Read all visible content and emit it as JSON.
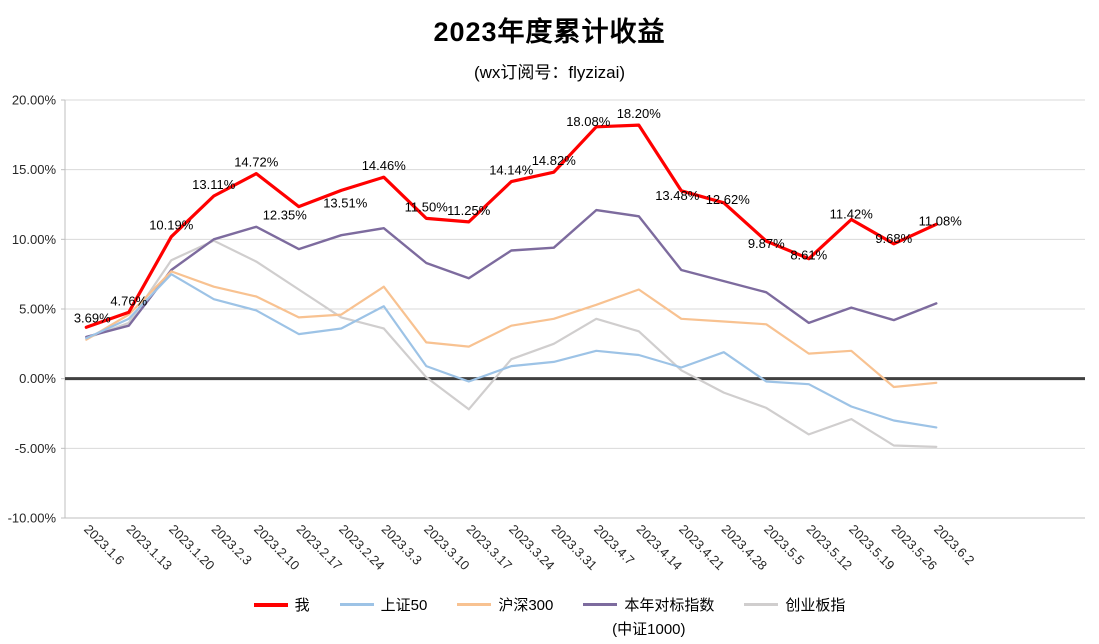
{
  "title": "2023年度累计收益",
  "subtitle": "(wx订阅号：flyzizai)",
  "chart_data": {
    "type": "line",
    "title": "2023年度累计收益",
    "subtitle": "(wx订阅号：flyzizai)",
    "x_categories": [
      "2023.1.6",
      "2023.1.13",
      "2023.1.20",
      "2023.2.3",
      "2023.2.10",
      "2023.2.17",
      "2023.2.24",
      "2023.3.3",
      "2023.3.10",
      "2023.3.17",
      "2023.3.24",
      "2023.3.31",
      "2023.4.7",
      "2023.4.14",
      "2023.4.21",
      "2023.4.28",
      "2023.5.5",
      "2023.5.12",
      "2023.5.19",
      "2023.5.26",
      "2023.6.2"
    ],
    "series": [
      {
        "name": "我",
        "color": "#FF0000",
        "line_width": 3.2,
        "values": [
          3.69,
          4.76,
          10.19,
          13.11,
          14.72,
          12.35,
          13.51,
          14.46,
          11.5,
          11.25,
          14.14,
          14.82,
          18.08,
          18.2,
          13.48,
          12.62,
          9.87,
          8.61,
          11.42,
          9.68,
          11.08
        ],
        "data_labels": [
          "3.69%",
          "4.76%",
          "10.19%",
          "13.11%",
          "14.72%",
          "12.35%",
          "13.51%",
          "14.46%",
          "11.50%",
          "11.25%",
          "14.14%",
          "14.82%",
          "18.08%",
          "18.20%",
          "13.48%",
          "12.62%",
          "9.87%",
          "8.61%",
          "11.42%",
          "9.68%",
          "11.08%"
        ]
      },
      {
        "name": "上证50",
        "color": "#9DC3E6",
        "line_width": 2.2,
        "values": [
          2.9,
          4.3,
          7.5,
          5.7,
          4.9,
          3.2,
          3.6,
          5.2,
          0.9,
          -0.2,
          0.9,
          1.2,
          2.0,
          1.7,
          0.8,
          1.9,
          -0.2,
          -0.4,
          -2.0,
          -3.0,
          -3.5
        ]
      },
      {
        "name": "沪深300",
        "color": "#F8C291",
        "line_width": 2.2,
        "values": [
          2.8,
          4.6,
          7.7,
          6.6,
          5.9,
          4.4,
          4.6,
          6.6,
          2.6,
          2.3,
          3.8,
          4.3,
          5.3,
          6.4,
          4.3,
          4.1,
          3.9,
          1.8,
          2.0,
          -0.6,
          -0.3
        ]
      },
      {
        "name": "本年对标指数",
        "name2": "(中证1000)",
        "color": "#7D6B9E",
        "line_width": 2.4,
        "values": [
          3.0,
          3.8,
          7.8,
          10.0,
          10.9,
          9.3,
          10.3,
          10.8,
          8.3,
          7.2,
          9.2,
          9.4,
          12.1,
          11.65,
          7.8,
          7.0,
          6.2,
          4.0,
          5.1,
          4.2,
          5.4
        ]
      },
      {
        "name": "创业板指",
        "color": "#D0CECE",
        "line_width": 2.2,
        "values": [
          2.9,
          4.0,
          8.5,
          9.9,
          8.4,
          6.4,
          4.4,
          3.6,
          0.1,
          -2.2,
          1.4,
          2.5,
          4.3,
          3.4,
          0.6,
          -1.0,
          -2.1,
          -4.0,
          -2.9,
          -4.8,
          -4.9
        ]
      }
    ],
    "ylim": [
      -10,
      20
    ],
    "ytick_step": 5,
    "ytick_labels": [
      "20.00%",
      "15.00%",
      "10.00%",
      "5.00%",
      "0.00%",
      "-5.00%",
      "-10.00%"
    ],
    "grid": true,
    "legend_position": "bottom",
    "colors": {
      "zero_line": "#404040",
      "gridline": "#D9D9D9",
      "axis": "#BFBFBF",
      "label_text": "#000000"
    }
  }
}
